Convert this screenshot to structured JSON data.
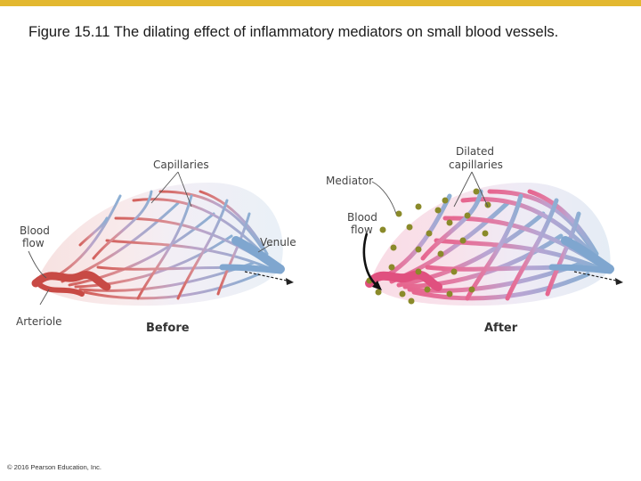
{
  "slide": {
    "accent_color": "#e3b830",
    "caption": "Figure 15.11  The dilating effect of inflammatory mediators on small blood vessels.",
    "copyright": "© 2016 Pearson Education, Inc."
  },
  "figure": {
    "labels": {
      "capillaries": "Capillaries",
      "blood_flow_left_1": "Blood",
      "blood_flow_left_2": "flow",
      "venule": "Venule",
      "arteriole": "Arteriole",
      "before": "Before",
      "mediator": "Mediator",
      "dilated_1": "Dilated",
      "dilated_2": "capillaries",
      "blood_flow_right_1": "Blood",
      "blood_flow_right_2": "flow",
      "after": "After"
    },
    "colors": {
      "arterial": "#d9605a",
      "dilated_arterial": "#e76a8e",
      "venous": "#8fb3d6",
      "mediator": "#8a8a2a"
    }
  }
}
